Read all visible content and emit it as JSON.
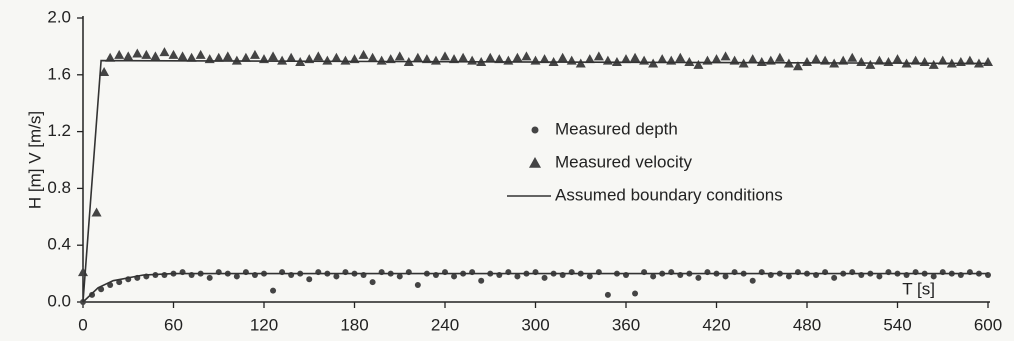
{
  "chart_data": {
    "type": "scatter",
    "ylabel": "H [m]  V [m/s]",
    "xlabel": "T [s]",
    "xlim": [
      0,
      600
    ],
    "xticks": [
      0,
      60,
      120,
      180,
      240,
      300,
      360,
      420,
      480,
      540,
      600
    ],
    "ylim": [
      0,
      2
    ],
    "yticks": [
      {
        "value": 0,
        "label": "0.0"
      },
      0.4,
      0.8,
      1.2,
      1.6,
      {
        "value": 2,
        "label": "2.0"
      }
    ],
    "series": [
      {
        "name": "Measured depth",
        "marker": "circle",
        "color": "#444",
        "x": [
          0,
          6,
          12,
          18,
          24,
          30,
          36,
          42,
          48,
          54,
          60,
          66,
          72,
          78,
          84,
          90,
          96,
          102,
          108,
          114,
          120,
          126,
          132,
          138,
          144,
          150,
          156,
          162,
          168,
          174,
          180,
          186,
          192,
          198,
          204,
          210,
          216,
          222,
          228,
          234,
          240,
          246,
          252,
          258,
          264,
          270,
          276,
          282,
          288,
          294,
          300,
          306,
          312,
          318,
          324,
          330,
          336,
          342,
          348,
          354,
          360,
          366,
          372,
          378,
          384,
          390,
          396,
          402,
          408,
          414,
          420,
          426,
          432,
          438,
          444,
          450,
          456,
          462,
          468,
          474,
          480,
          486,
          492,
          498,
          504,
          510,
          516,
          522,
          528,
          534,
          540,
          546,
          552,
          558,
          564,
          570,
          576,
          582,
          588,
          594,
          600
        ],
        "values": [
          0.0,
          0.05,
          0.09,
          0.12,
          0.14,
          0.16,
          0.17,
          0.18,
          0.19,
          0.19,
          0.2,
          0.21,
          0.19,
          0.2,
          0.17,
          0.21,
          0.2,
          0.18,
          0.21,
          0.19,
          0.2,
          0.08,
          0.21,
          0.19,
          0.2,
          0.16,
          0.21,
          0.2,
          0.18,
          0.21,
          0.2,
          0.19,
          0.14,
          0.21,
          0.2,
          0.18,
          0.21,
          0.12,
          0.2,
          0.19,
          0.21,
          0.18,
          0.2,
          0.21,
          0.15,
          0.2,
          0.19,
          0.21,
          0.18,
          0.2,
          0.21,
          0.17,
          0.2,
          0.19,
          0.21,
          0.2,
          0.18,
          0.21,
          0.05,
          0.2,
          0.19,
          0.06,
          0.21,
          0.18,
          0.2,
          0.21,
          0.19,
          0.2,
          0.17,
          0.21,
          0.2,
          0.18,
          0.21,
          0.2,
          0.15,
          0.21,
          0.19,
          0.2,
          0.18,
          0.21,
          0.2,
          0.19,
          0.21,
          0.17,
          0.2,
          0.21,
          0.19,
          0.2,
          0.18,
          0.21,
          0.2,
          0.19,
          0.21,
          0.2,
          0.18,
          0.21,
          0.2,
          0.19,
          0.21,
          0.2,
          0.19
        ]
      },
      {
        "name": "Measured velocity",
        "marker": "triangle",
        "color": "#444",
        "x": [
          0,
          9,
          14,
          18,
          24,
          30,
          36,
          42,
          48,
          54,
          60,
          66,
          72,
          78,
          84,
          90,
          96,
          102,
          108,
          114,
          120,
          126,
          132,
          138,
          144,
          150,
          156,
          162,
          168,
          174,
          180,
          186,
          192,
          198,
          204,
          210,
          216,
          222,
          228,
          234,
          240,
          246,
          252,
          258,
          264,
          270,
          276,
          282,
          288,
          294,
          300,
          306,
          312,
          318,
          324,
          330,
          336,
          342,
          348,
          354,
          360,
          366,
          372,
          378,
          384,
          390,
          396,
          402,
          408,
          414,
          420,
          426,
          432,
          438,
          444,
          450,
          456,
          462,
          468,
          474,
          480,
          486,
          492,
          498,
          504,
          510,
          516,
          522,
          528,
          534,
          540,
          546,
          552,
          558,
          564,
          570,
          576,
          582,
          588,
          594,
          600
        ],
        "values": [
          0.21,
          0.63,
          1.62,
          1.72,
          1.74,
          1.73,
          1.75,
          1.74,
          1.73,
          1.76,
          1.74,
          1.73,
          1.72,
          1.74,
          1.71,
          1.72,
          1.73,
          1.7,
          1.72,
          1.74,
          1.71,
          1.73,
          1.7,
          1.72,
          1.69,
          1.71,
          1.73,
          1.7,
          1.72,
          1.7,
          1.71,
          1.74,
          1.72,
          1.7,
          1.71,
          1.73,
          1.69,
          1.72,
          1.71,
          1.7,
          1.73,
          1.71,
          1.72,
          1.7,
          1.69,
          1.72,
          1.71,
          1.7,
          1.72,
          1.73,
          1.7,
          1.71,
          1.69,
          1.72,
          1.7,
          1.68,
          1.71,
          1.73,
          1.7,
          1.69,
          1.71,
          1.72,
          1.7,
          1.68,
          1.71,
          1.7,
          1.72,
          1.69,
          1.67,
          1.7,
          1.71,
          1.73,
          1.7,
          1.68,
          1.71,
          1.69,
          1.7,
          1.72,
          1.68,
          1.66,
          1.69,
          1.71,
          1.7,
          1.68,
          1.7,
          1.72,
          1.69,
          1.67,
          1.7,
          1.69,
          1.71,
          1.68,
          1.7,
          1.69,
          1.67,
          1.7,
          1.68,
          1.69,
          1.7,
          1.68,
          1.69
        ]
      },
      {
        "name": "Assumed boundary conditions",
        "marker": "line",
        "color": "#333",
        "segments": [
          {
            "x": [
              0,
              12,
              600
            ],
            "values": [
              0,
              1.7,
              1.68
            ]
          },
          {
            "x": [
              0,
              10,
              20,
              40,
              60,
              600
            ],
            "values": [
              0,
              0.1,
              0.15,
              0.19,
              0.2,
              0.2
            ]
          }
        ]
      }
    ]
  }
}
